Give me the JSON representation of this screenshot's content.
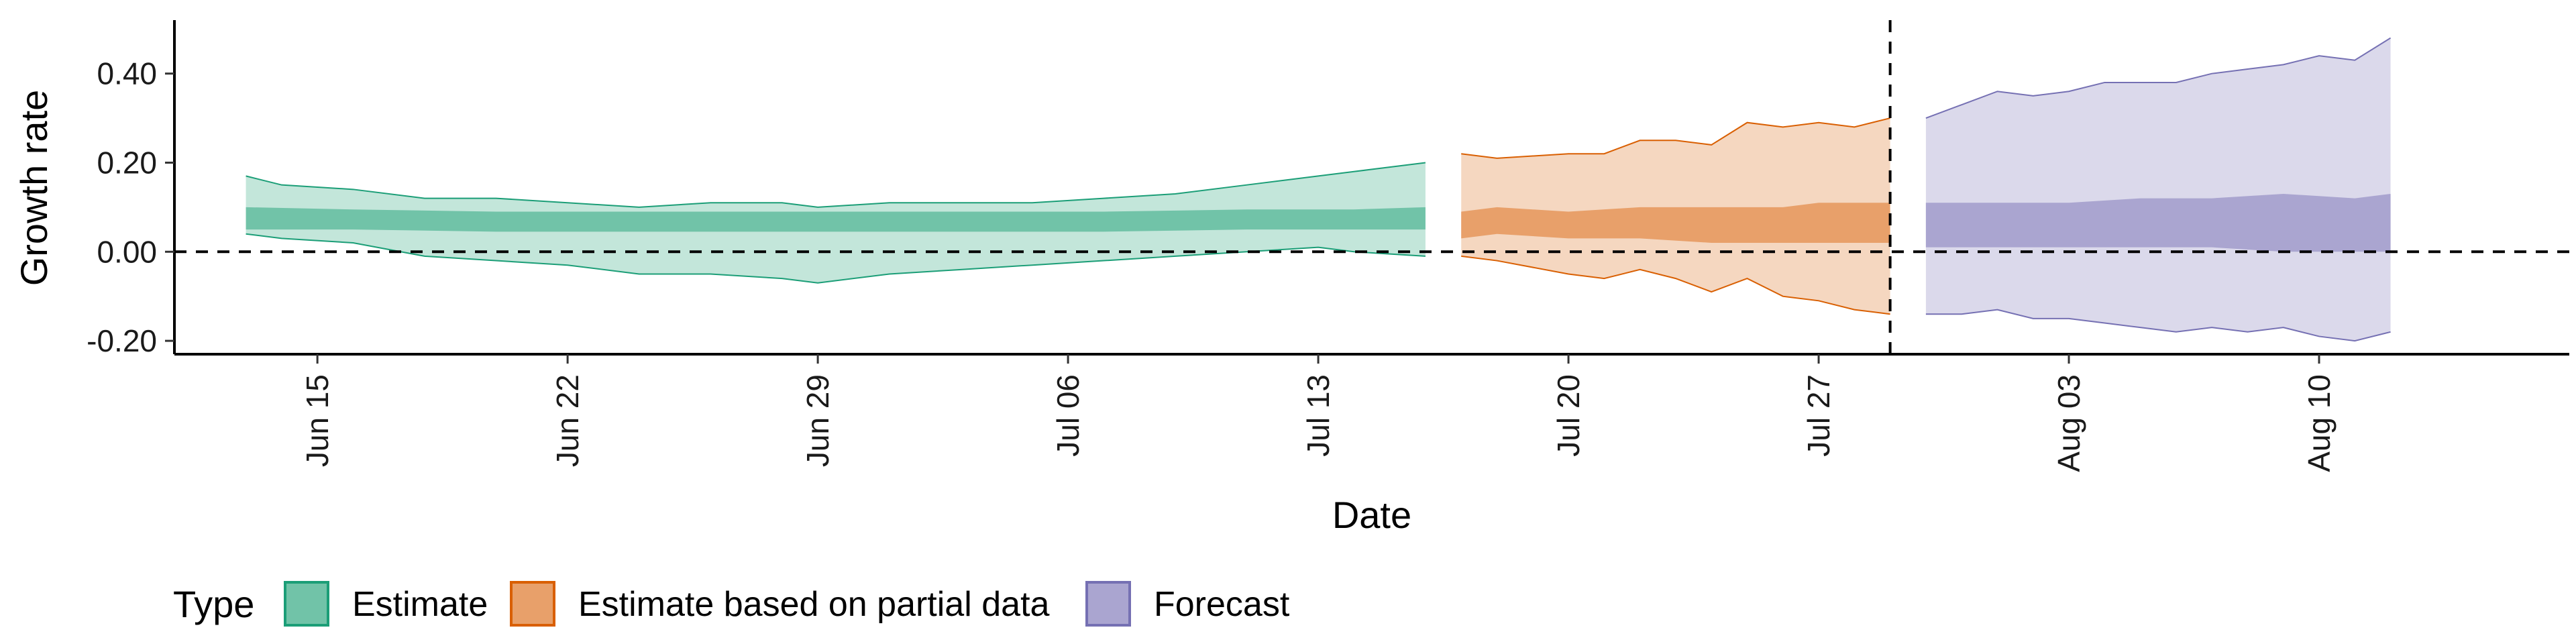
{
  "chart_data": {
    "type": "area",
    "xlabel": "Date",
    "ylabel": "Growth rate",
    "xlim": [
      "2020-06-11",
      "2020-08-17"
    ],
    "ylim": [
      -0.23,
      0.52
    ],
    "yticks": [
      -0.2,
      0.0,
      0.2,
      0.4
    ],
    "ytick_labels": [
      "-0.20",
      "0.00",
      "0.20",
      "0.40"
    ],
    "xticks": [
      "2020-06-15",
      "2020-06-22",
      "2020-06-29",
      "2020-07-06",
      "2020-07-13",
      "2020-07-20",
      "2020-07-27",
      "2020-08-03",
      "2020-08-10"
    ],
    "xtick_labels": [
      "Jun 15",
      "Jun 22",
      "Jun 29",
      "Jul 06",
      "Jul 13",
      "Jul 20",
      "Jul 27",
      "Aug 03",
      "Aug 10"
    ],
    "hline_y": 0.0,
    "vline_x": "2020-07-29",
    "grid": false,
    "legend": {
      "title": "Type",
      "position": "bottom",
      "entries": [
        {
          "label": "Estimate",
          "fill": "#71c3a8",
          "stroke": "#1b9e77"
        },
        {
          "label": "Estimate based on partial data",
          "fill": "#e8a06a",
          "stroke": "#d95f02"
        },
        {
          "label": "Forecast",
          "fill": "#aaa5d0",
          "stroke": "#7570b3"
        }
      ]
    },
    "series": [
      {
        "name": "Estimate",
        "color": "#1b9e77",
        "x_start": "2020-06-13",
        "x_end": "2020-07-16",
        "outer": {
          "x": [
            "2020-06-13",
            "2020-06-14",
            "2020-06-16",
            "2020-06-18",
            "2020-06-20",
            "2020-06-22",
            "2020-06-24",
            "2020-06-26",
            "2020-06-28",
            "2020-06-29",
            "2020-07-01",
            "2020-07-03",
            "2020-07-05",
            "2020-07-07",
            "2020-07-09",
            "2020-07-11",
            "2020-07-13",
            "2020-07-14",
            "2020-07-16"
          ],
          "upper": [
            0.17,
            0.15,
            0.14,
            0.12,
            0.12,
            0.11,
            0.1,
            0.11,
            0.11,
            0.1,
            0.11,
            0.11,
            0.11,
            0.12,
            0.13,
            0.15,
            0.17,
            0.18,
            0.2
          ],
          "lower": [
            0.04,
            0.03,
            0.02,
            -0.01,
            -0.02,
            -0.03,
            -0.05,
            -0.05,
            -0.06,
            -0.07,
            -0.05,
            -0.04,
            -0.03,
            -0.02,
            -0.01,
            0.0,
            0.01,
            0.0,
            -0.01
          ]
        },
        "inner": {
          "x": [
            "2020-06-13",
            "2020-06-16",
            "2020-06-20",
            "2020-06-24",
            "2020-06-29",
            "2020-07-03",
            "2020-07-07",
            "2020-07-11",
            "2020-07-14",
            "2020-07-16"
          ],
          "upper": [
            0.1,
            0.095,
            0.09,
            0.09,
            0.09,
            0.09,
            0.09,
            0.095,
            0.095,
            0.1
          ],
          "lower": [
            0.05,
            0.05,
            0.045,
            0.045,
            0.045,
            0.045,
            0.045,
            0.05,
            0.05,
            0.05
          ]
        }
      },
      {
        "name": "Estimate based on partial data",
        "color": "#d95f02",
        "x_start": "2020-07-17",
        "x_end": "2020-07-29",
        "outer": {
          "x": [
            "2020-07-17",
            "2020-07-18",
            "2020-07-20",
            "2020-07-21",
            "2020-07-22",
            "2020-07-23",
            "2020-07-24",
            "2020-07-25",
            "2020-07-26",
            "2020-07-27",
            "2020-07-28",
            "2020-07-29"
          ],
          "upper": [
            0.22,
            0.21,
            0.22,
            0.22,
            0.25,
            0.25,
            0.24,
            0.29,
            0.28,
            0.29,
            0.28,
            0.3
          ],
          "lower": [
            -0.01,
            -0.02,
            -0.05,
            -0.06,
            -0.04,
            -0.06,
            -0.09,
            -0.06,
            -0.1,
            -0.11,
            -0.13,
            -0.14
          ]
        },
        "inner": {
          "x": [
            "2020-07-17",
            "2020-07-18",
            "2020-07-20",
            "2020-07-22",
            "2020-07-24",
            "2020-07-26",
            "2020-07-27",
            "2020-07-29"
          ],
          "upper": [
            0.09,
            0.1,
            0.09,
            0.1,
            0.1,
            0.1,
            0.11,
            0.11
          ],
          "lower": [
            0.03,
            0.04,
            0.03,
            0.03,
            0.02,
            0.02,
            0.02,
            0.02
          ]
        }
      },
      {
        "name": "Forecast",
        "color": "#7570b3",
        "x_start": "2020-07-30",
        "x_end": "2020-08-12",
        "outer": {
          "x": [
            "2020-07-30",
            "2020-07-31",
            "2020-08-01",
            "2020-08-02",
            "2020-08-03",
            "2020-08-04",
            "2020-08-05",
            "2020-08-06",
            "2020-08-07",
            "2020-08-08",
            "2020-08-09",
            "2020-08-10",
            "2020-08-11",
            "2020-08-12"
          ],
          "upper": [
            0.3,
            0.33,
            0.36,
            0.35,
            0.36,
            0.38,
            0.38,
            0.38,
            0.4,
            0.41,
            0.42,
            0.44,
            0.43,
            0.48
          ],
          "lower": [
            -0.14,
            -0.14,
            -0.13,
            -0.15,
            -0.15,
            -0.16,
            -0.17,
            -0.18,
            -0.17,
            -0.18,
            -0.17,
            -0.19,
            -0.2,
            -0.18
          ]
        },
        "inner": {
          "x": [
            "2020-07-30",
            "2020-08-01",
            "2020-08-03",
            "2020-08-05",
            "2020-08-07",
            "2020-08-09",
            "2020-08-11",
            "2020-08-12"
          ],
          "upper": [
            0.11,
            0.11,
            0.11,
            0.12,
            0.12,
            0.13,
            0.12,
            0.13
          ],
          "lower": [
            0.01,
            0.01,
            0.01,
            0.01,
            0.01,
            0.0,
            0.0,
            0.0
          ]
        }
      }
    ]
  }
}
